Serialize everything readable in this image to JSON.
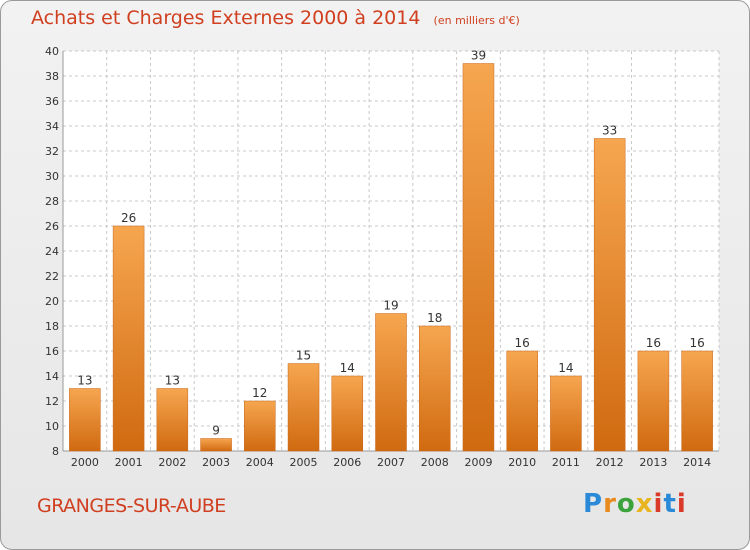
{
  "header": {
    "title": "Achats et Charges Externes 2000 à 2014",
    "unit": "(en milliers d'€)"
  },
  "footer": {
    "commune": "GRANGES-SUR-AUBE",
    "logo": "Proxiti"
  },
  "colors": {
    "bar_light": "#f6a650",
    "bar_dark": "#d06a10",
    "title": "#d04020",
    "grid": "#c8c8c8"
  },
  "chart_data": {
    "type": "bar",
    "title": "Achats et Charges Externes 2000 à 2014",
    "subtitle": "(en milliers d'€)",
    "categories": [
      "2000",
      "2001",
      "2002",
      "2003",
      "2004",
      "2005",
      "2006",
      "2007",
      "2008",
      "2009",
      "2010",
      "2011",
      "2012",
      "2013",
      "2014"
    ],
    "values": [
      13,
      26,
      13,
      9,
      12,
      15,
      14,
      19,
      18,
      39,
      16,
      14,
      33,
      16,
      16
    ],
    "data_labels": [
      "13",
      "26",
      "13",
      "9",
      "12",
      "15",
      "14",
      "19",
      "18",
      "39",
      "16",
      "14",
      "33",
      "16",
      "16"
    ],
    "ylim": [
      8,
      40
    ],
    "yticks": [
      "8",
      "10",
      "12",
      "14",
      "16",
      "18",
      "20",
      "22",
      "24",
      "26",
      "28",
      "30",
      "32",
      "34",
      "36",
      "38",
      "40"
    ],
    "grid": true,
    "legend": "none"
  }
}
